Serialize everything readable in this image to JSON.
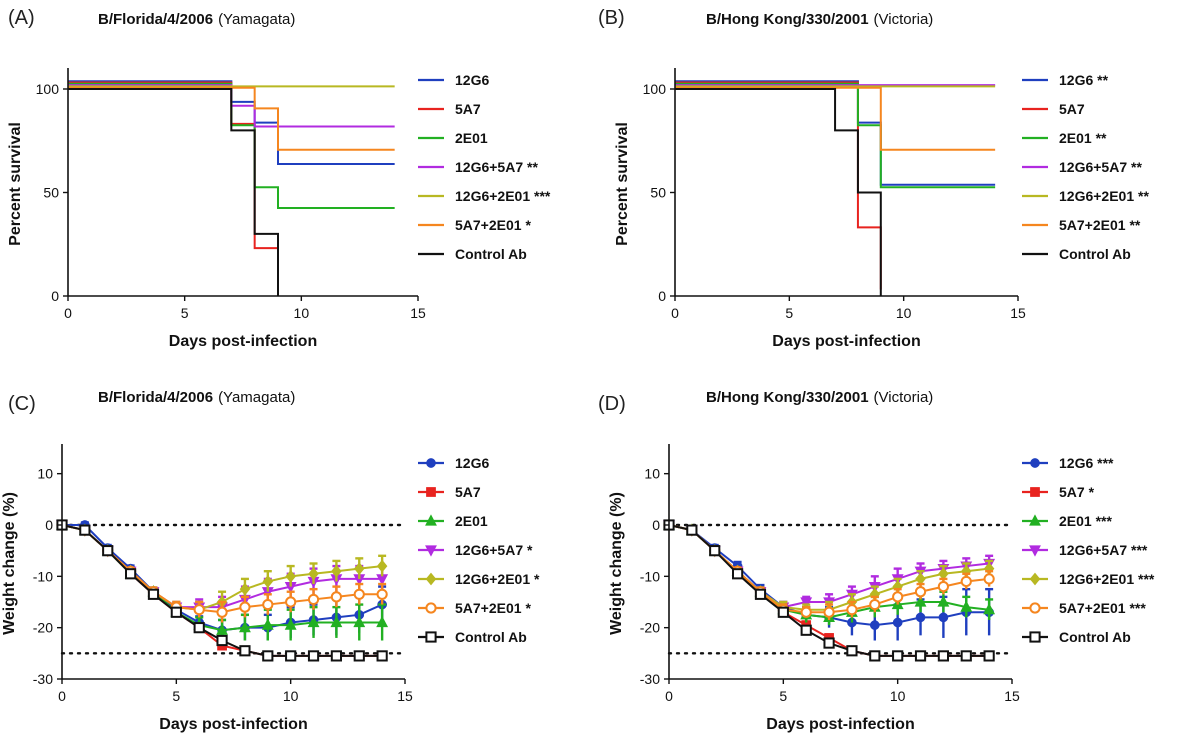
{
  "chart_data": [
    {
      "panel": "(A)",
      "type": "line",
      "subtype": "kaplan-meier",
      "title": "B/Florida/4/2006",
      "title_suffix": "(Yamagata)",
      "xlabel": "Days post-infection",
      "ylabel": "Percent survival",
      "xlim": [
        0,
        15
      ],
      "ylim": [
        0,
        100
      ],
      "xticks": [
        0,
        5,
        10,
        15
      ],
      "yticks": [
        0,
        50,
        100
      ],
      "legend_position": "right",
      "series": [
        {
          "name": "12G6",
          "color": "#1f3fbf",
          "x": [
            0,
            7,
            8,
            9,
            14
          ],
          "y": [
            100,
            90,
            80,
            60,
            60
          ]
        },
        {
          "name": "5A7",
          "color": "#e8231f",
          "x": [
            0,
            7,
            8,
            9
          ],
          "y": [
            100,
            80,
            20,
            0
          ]
        },
        {
          "name": "2E01",
          "color": "#22b022",
          "x": [
            0,
            7,
            8,
            9,
            14
          ],
          "y": [
            100,
            80,
            50,
            40,
            40
          ]
        },
        {
          "name": "12G6+5A7 **",
          "color": "#b12be0",
          "x": [
            0,
            7,
            8,
            14
          ],
          "y": [
            100,
            90,
            80,
            80
          ]
        },
        {
          "name": "12G6+2E01 ***",
          "color": "#b8b822",
          "x": [
            0,
            14
          ],
          "y": [
            100,
            100
          ]
        },
        {
          "name": "5A7+2E01 *",
          "color": "#f5861f",
          "x": [
            0,
            8,
            9,
            14
          ],
          "y": [
            100,
            90,
            70,
            70
          ]
        },
        {
          "name": "Control Ab",
          "color": "#111111",
          "x": [
            0,
            7,
            8,
            9
          ],
          "y": [
            100,
            80,
            30,
            0
          ]
        }
      ]
    },
    {
      "panel": "(B)",
      "type": "line",
      "subtype": "kaplan-meier",
      "title": "B/Hong Kong/330/2001",
      "title_suffix": "(Victoria)",
      "xlabel": "Days post-infection",
      "ylabel": "Percent survival",
      "xlim": [
        0,
        15
      ],
      "ylim": [
        0,
        100
      ],
      "xticks": [
        0,
        5,
        10,
        15
      ],
      "yticks": [
        0,
        50,
        100
      ],
      "legend_position": "right",
      "series": [
        {
          "name": "12G6 **",
          "color": "#1f3fbf",
          "x": [
            0,
            8,
            9,
            14
          ],
          "y": [
            100,
            80,
            50,
            50
          ]
        },
        {
          "name": "5A7",
          "color": "#e8231f",
          "x": [
            0,
            8,
            9
          ],
          "y": [
            100,
            30,
            0
          ]
        },
        {
          "name": "2E01 **",
          "color": "#22b022",
          "x": [
            0,
            8,
            9,
            14
          ],
          "y": [
            100,
            80,
            50,
            50
          ]
        },
        {
          "name": "12G6+5A7 **",
          "color": "#b12be0",
          "x": [
            0,
            14
          ],
          "y": [
            100,
            100
          ]
        },
        {
          "name": "12G6+2E01 **",
          "color": "#b8b822",
          "x": [
            0,
            14
          ],
          "y": [
            100,
            100
          ]
        },
        {
          "name": "5A7+2E01 **",
          "color": "#f5861f",
          "x": [
            0,
            9,
            14
          ],
          "y": [
            100,
            70,
            70
          ]
        },
        {
          "name": "Control Ab",
          "color": "#111111",
          "x": [
            0,
            7,
            8,
            9
          ],
          "y": [
            100,
            80,
            50,
            0
          ]
        }
      ]
    },
    {
      "panel": "(C)",
      "type": "line",
      "title": "B/Florida/4/2006",
      "title_suffix": "(Yamagata)",
      "xlabel": "Days post-infection",
      "ylabel": "Weight change (%)",
      "xlim": [
        0,
        15
      ],
      "ylim": [
        -30,
        15
      ],
      "xticks": [
        0,
        5,
        10,
        15
      ],
      "yticks": [
        -30,
        -20,
        -10,
        0,
        10
      ],
      "reference_lines": [
        0,
        -25
      ],
      "legend_position": "right",
      "x": [
        0,
        1,
        2,
        3,
        4,
        5,
        6,
        7,
        8,
        9,
        10,
        11,
        12,
        13,
        14
      ],
      "series": [
        {
          "name": "12G6",
          "color": "#1f3fbf",
          "marker": "circle",
          "y": [
            0,
            0,
            -4.5,
            -8.5,
            -13,
            -16.5,
            -19,
            -20.5,
            -20,
            -20,
            -19,
            -18.5,
            -18,
            -17.5,
            -15.5
          ],
          "err": [
            0.5,
            0.5,
            0.6,
            0.6,
            0.8,
            1,
            1.2,
            2,
            2.5,
            2.5,
            3,
            3,
            3.5,
            3.5,
            3.5
          ]
        },
        {
          "name": "5A7",
          "color": "#e8231f",
          "marker": "square",
          "y": [
            0,
            -1,
            -5,
            -9.5,
            -13.5,
            -17,
            -20,
            -23.5,
            -24.5,
            -25.5,
            -25.5,
            -25.5,
            -25.5,
            -25.5,
            -25.5
          ],
          "err": [
            0.3,
            0.3,
            0.4,
            0.5,
            0.5,
            0.6,
            0.6,
            0.6,
            0.6,
            0.5,
            0.5,
            0.5,
            0.5,
            0.5,
            0.5
          ]
        },
        {
          "name": "2E01",
          "color": "#22b022",
          "marker": "triangle-up",
          "y": [
            0,
            -1,
            -5,
            -9.5,
            -13,
            -17,
            -19.5,
            -20.5,
            -20,
            -19.5,
            -19.5,
            -19,
            -19,
            -19,
            -19
          ],
          "err": [
            0.3,
            0.3,
            0.5,
            0.6,
            0.8,
            1,
            1.5,
            2,
            2.5,
            3,
            3,
            3,
            3,
            3.5,
            3.5
          ]
        },
        {
          "name": "12G6+5A7 *",
          "color": "#b12be0",
          "marker": "triangle-down",
          "y": [
            0,
            -1,
            -5,
            -9,
            -13,
            -16,
            -16,
            -16,
            -14.5,
            -13,
            -12,
            -11,
            -10.5,
            -10.5,
            -10.5
          ],
          "err": [
            0.3,
            0.3,
            0.5,
            0.6,
            0.8,
            1,
            1.5,
            2,
            2.5,
            2.5,
            2.5,
            2.5,
            2.5,
            2.5,
            2.5
          ]
        },
        {
          "name": "12G6+2E01 *",
          "color": "#b8b822",
          "marker": "diamond",
          "y": [
            0,
            -1,
            -5,
            -9,
            -13,
            -16,
            -16.5,
            -15,
            -12.5,
            -11,
            -10,
            -9.5,
            -9,
            -8.5,
            -8
          ],
          "err": [
            0.3,
            0.3,
            0.5,
            0.6,
            0.8,
            1,
            1.5,
            2,
            2,
            2,
            2,
            2,
            2,
            2,
            2
          ]
        },
        {
          "name": "5A7+2E01 *",
          "color": "#f5861f",
          "marker": "circle-open",
          "y": [
            0,
            -1,
            -5,
            -9,
            -13,
            -16,
            -16.5,
            -17,
            -16,
            -15.5,
            -15,
            -14.5,
            -14,
            -13.5,
            -13.5
          ],
          "err": [
            0.3,
            0.3,
            0.5,
            0.6,
            0.8,
            1,
            1.5,
            2,
            2,
            2,
            2,
            2,
            2,
            2,
            2
          ]
        },
        {
          "name": "Control Ab",
          "color": "#111111",
          "marker": "square-open",
          "y": [
            0,
            -1,
            -5,
            -9.5,
            -13.5,
            -17,
            -20,
            -22.5,
            -24.5,
            -25.5,
            -25.5,
            -25.5,
            -25.5,
            -25.5,
            -25.5
          ],
          "err": [
            0.3,
            0.3,
            0.4,
            0.5,
            0.5,
            0.6,
            0.6,
            0.6,
            0.6,
            0.5,
            0.5,
            0.5,
            0.5,
            0.5,
            0.5
          ]
        }
      ]
    },
    {
      "panel": "(D)",
      "type": "line",
      "title": "B/Hong Kong/330/2001",
      "title_suffix": "(Victoria)",
      "xlabel": "Days post-infection",
      "ylabel": "Weight change (%)",
      "xlim": [
        0,
        15
      ],
      "ylim": [
        -30,
        15
      ],
      "xticks": [
        0,
        5,
        10,
        15
      ],
      "yticks": [
        -30,
        -20,
        -10,
        0,
        10
      ],
      "reference_lines": [
        0,
        -25
      ],
      "legend_position": "right",
      "x": [
        0,
        1,
        2,
        3,
        4,
        5,
        6,
        7,
        8,
        9,
        10,
        11,
        12,
        13,
        14
      ],
      "series": [
        {
          "name": "12G6 ***",
          "color": "#1f3fbf",
          "marker": "circle",
          "y": [
            0,
            -1,
            -4.5,
            -8,
            -12.5,
            -16,
            -17.5,
            -18,
            -19,
            -19.5,
            -19,
            -18,
            -18,
            -17,
            -17
          ],
          "err": [
            0.3,
            0.4,
            0.6,
            0.8,
            0.8,
            1,
            1.5,
            2,
            2.5,
            3,
            3.5,
            3.5,
            4,
            4.5,
            4.5
          ]
        },
        {
          "name": "5A7 *",
          "color": "#e8231f",
          "marker": "square",
          "y": [
            0,
            -1,
            -5,
            -9,
            -13,
            -17,
            -19.5,
            -22,
            -24.5,
            -25.5,
            -25.5,
            -25.5,
            -25.5,
            -25.5,
            -25.5
          ],
          "err": [
            0.3,
            0.3,
            0.4,
            0.5,
            0.5,
            0.6,
            0.6,
            0.6,
            0.6,
            0.5,
            0.5,
            0.5,
            0.5,
            0.5,
            0.5
          ]
        },
        {
          "name": "2E01 ***",
          "color": "#22b022",
          "marker": "triangle-up",
          "y": [
            0,
            -1,
            -5,
            -9,
            -13,
            -16.5,
            -17.5,
            -18,
            -17,
            -16,
            -15.5,
            -15,
            -15,
            -16,
            -16.5
          ],
          "err": [
            0.3,
            0.3,
            0.5,
            0.6,
            0.8,
            1,
            1.5,
            1.5,
            2,
            2,
            2,
            2,
            2,
            2,
            2
          ]
        },
        {
          "name": "12G6+5A7 ***",
          "color": "#b12be0",
          "marker": "triangle-down",
          "y": [
            0,
            -1,
            -5,
            -9,
            -13,
            -16,
            -15,
            -15,
            -13.5,
            -12,
            -10.5,
            -9,
            -8.5,
            -8,
            -7.5
          ],
          "err": [
            0.3,
            0.3,
            0.5,
            0.6,
            0.8,
            1,
            1,
            1.5,
            1.5,
            2,
            2,
            1.5,
            1.5,
            1.5,
            1.5
          ]
        },
        {
          "name": "12G6+2E01 ***",
          "color": "#b8b822",
          "marker": "diamond",
          "y": [
            0,
            -1,
            -5,
            -9,
            -13,
            -16,
            -16.5,
            -16.5,
            -15,
            -13.5,
            -12,
            -10.5,
            -9.5,
            -9,
            -8.5
          ],
          "err": [
            0.3,
            0.3,
            0.5,
            0.6,
            0.8,
            1,
            1,
            1.5,
            1.5,
            1.5,
            1.5,
            1.5,
            1.5,
            1.5,
            1.5
          ]
        },
        {
          "name": "5A7+2E01 ***",
          "color": "#f5861f",
          "marker": "circle-open",
          "y": [
            0,
            -1,
            -5,
            -9,
            -13,
            -16.5,
            -17,
            -17,
            -16.5,
            -15.5,
            -14,
            -13,
            -12,
            -11,
            -10.5
          ],
          "err": [
            0.3,
            0.3,
            0.5,
            0.6,
            0.8,
            1,
            1,
            1.5,
            1.5,
            1.5,
            1.5,
            1.5,
            1.5,
            1.5,
            1.5
          ]
        },
        {
          "name": "Control Ab",
          "color": "#111111",
          "marker": "square-open",
          "y": [
            0,
            -1,
            -5,
            -9.5,
            -13.5,
            -17,
            -20.5,
            -23,
            -24.5,
            -25.5,
            -25.5,
            -25.5,
            -25.5,
            -25.5,
            -25.5
          ],
          "err": [
            0.3,
            0.3,
            0.4,
            0.5,
            0.5,
            0.6,
            0.6,
            0.6,
            0.6,
            0.5,
            0.5,
            0.5,
            0.5,
            0.5,
            0.5
          ]
        }
      ]
    }
  ]
}
